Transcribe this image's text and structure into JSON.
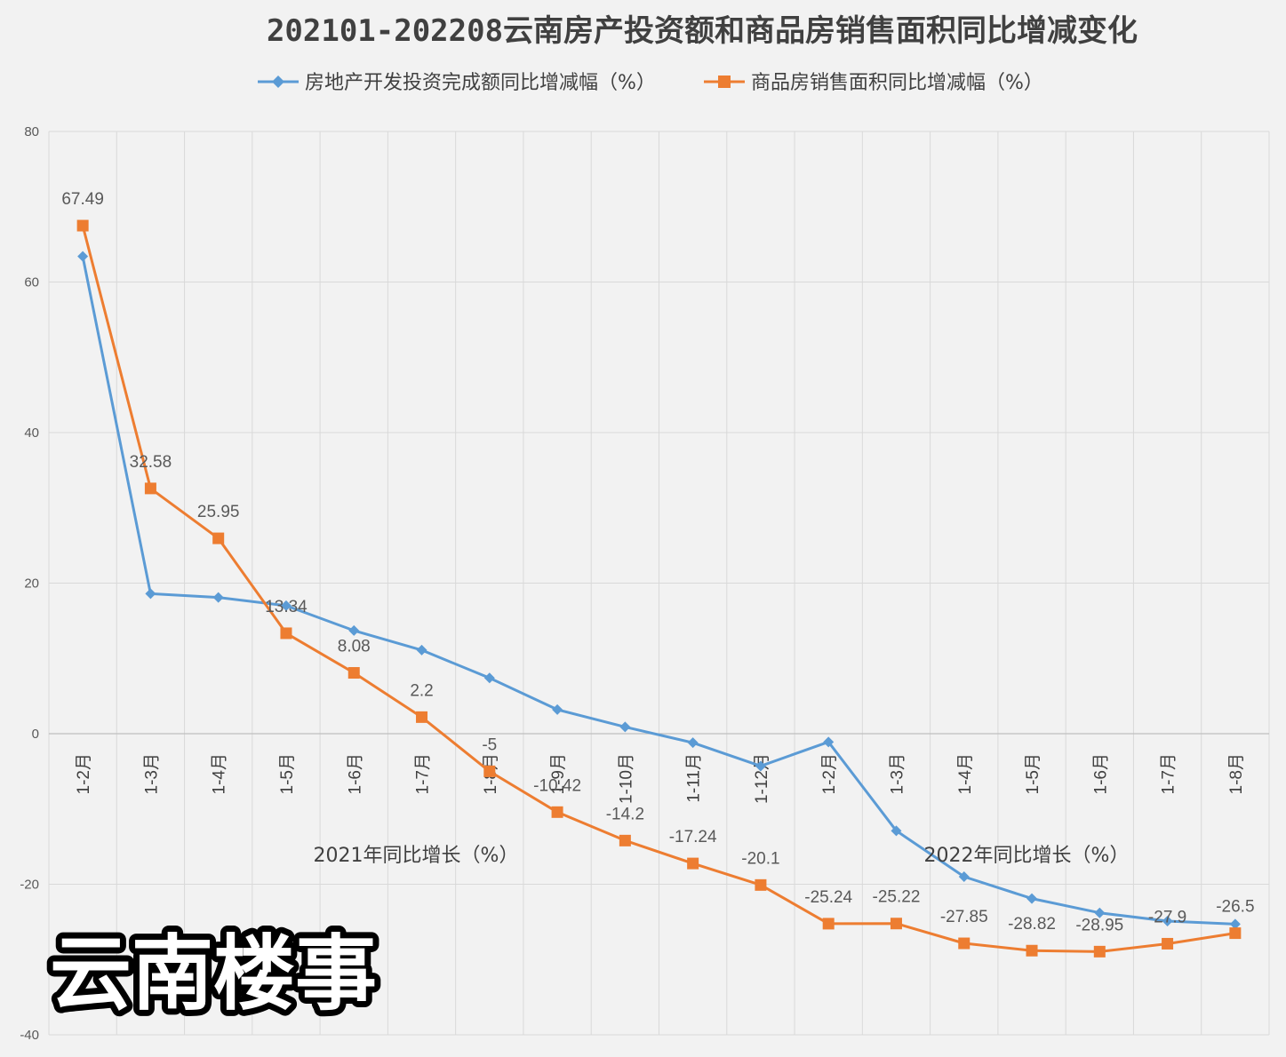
{
  "chart_data": {
    "type": "line",
    "title": "202101-202208云南房产投资额和商品房销售面积同比增减变化",
    "categories": [
      "1-2月",
      "1-3月",
      "1-4月",
      "1-5月",
      "1-6月",
      "1-7月",
      "1-8月",
      "1-9月",
      "1-10月",
      "1-11月",
      "1-12月",
      "1-2月",
      "1-3月",
      "1-4月",
      "1-5月",
      "1-6月",
      "1-7月",
      "1-8月"
    ],
    "category_groups": [
      {
        "label": "2021年同比增长（%）"
      },
      {
        "label": "2022年同比增长（%）"
      }
    ],
    "ylim": [
      -40,
      80
    ],
    "yticks": [
      -40,
      -20,
      0,
      20,
      40,
      60,
      80
    ],
    "grid": true,
    "legend_position": "top",
    "series": [
      {
        "name": "房地产开发投资完成额同比增减幅（%）",
        "color": "#5b9bd5",
        "marker": "diamond",
        "values": [
          63.4,
          18.6,
          18.1,
          17.0,
          13.7,
          11.1,
          7.4,
          3.2,
          0.9,
          -1.2,
          -4.3,
          -1.1,
          -12.9,
          -19.0,
          -21.9,
          -23.8,
          -24.9,
          -25.3
        ],
        "data_labels": null
      },
      {
        "name": "商品房销售面积同比增减幅（%）",
        "color": "#ed7d31",
        "marker": "square",
        "values": [
          67.49,
          32.58,
          25.95,
          13.34,
          8.08,
          2.2,
          -5,
          -10.42,
          -14.2,
          -17.24,
          -20.1,
          -25.24,
          -25.22,
          -27.85,
          -28.82,
          -28.95,
          -27.9,
          -26.5
        ],
        "data_labels": [
          "67.49",
          "32.58",
          "25.95",
          "13.34",
          "8.08",
          "2.2",
          "-5",
          "-10.42",
          "-14.2",
          "-17.24",
          "-20.1",
          "-25.24",
          "-25.22",
          "-27.85",
          "-28.82",
          "-28.95",
          "-27.9",
          "-26.5"
        ]
      }
    ]
  },
  "watermark": {
    "text": "云南楼事"
  }
}
